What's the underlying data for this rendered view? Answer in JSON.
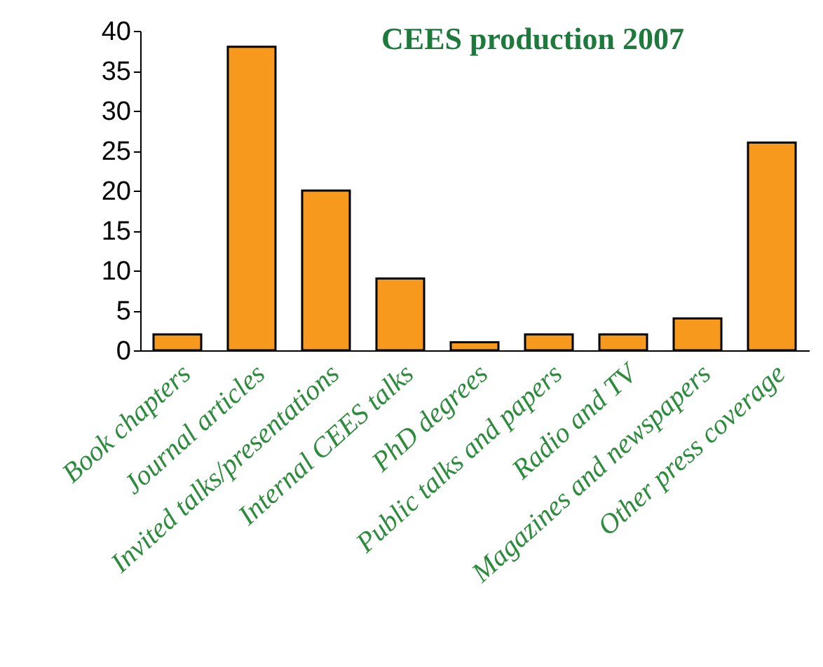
{
  "chart_data": {
    "type": "bar",
    "title": "CEES production 2007",
    "categories": [
      "Book chapters",
      "Journal articles",
      "Invited talks/presentations",
      "Internal CEES talks",
      "PhD degrees",
      "Public talks and papers",
      "Radio and TV",
      "Magazines and newspapers",
      "Other press coverage"
    ],
    "values": [
      2,
      38,
      20,
      9,
      1,
      2,
      2,
      4,
      26
    ],
    "color": "#f7991c",
    "ylim": [
      0,
      40
    ],
    "yticks": [
      0,
      5,
      10,
      15,
      20,
      25,
      30,
      35,
      40
    ],
    "grid": false
  }
}
